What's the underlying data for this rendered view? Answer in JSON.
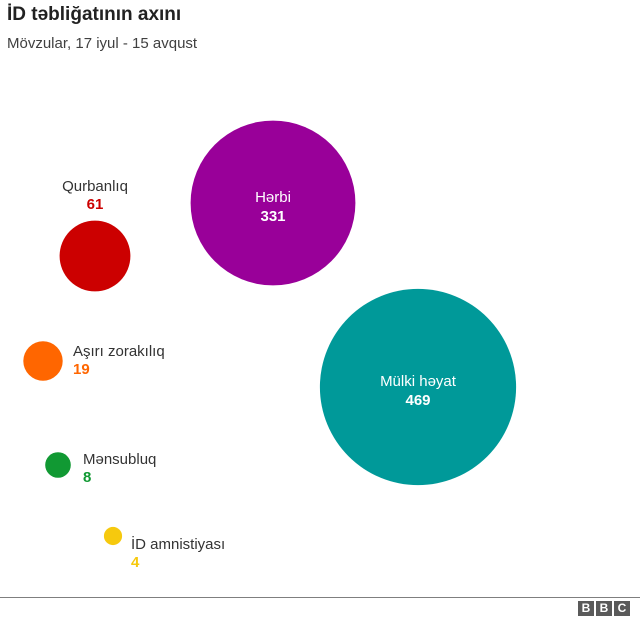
{
  "title": "İD təbliğatının axını",
  "subtitle": "Mövzular, 17 iyul - 15 avqust",
  "brand": [
    "B",
    "B",
    "C"
  ],
  "chart_data": {
    "type": "bubble",
    "title": "İD təbliğatının axını",
    "subtitle": "Mövzular, 17 iyul - 15 avqust",
    "categories": [
      "Hərbi",
      "Mülki həyat",
      "Qurbanlıq",
      "Aşırı zorakılıq",
      "Mənsubluq",
      "İD amnistiyası"
    ],
    "values": [
      331,
      469,
      61,
      19,
      8,
      4
    ],
    "colors": [
      "#990099",
      "#009999",
      "#cc0000",
      "#ff6600",
      "#119933",
      "#f6c90e"
    ]
  }
}
